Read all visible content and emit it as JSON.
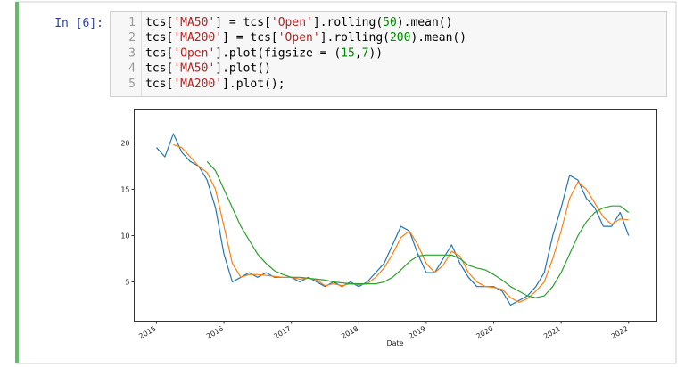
{
  "cell": {
    "prompt": "In [6]:",
    "line_numbers": [
      1,
      2,
      3,
      4,
      5
    ],
    "code": [
      [
        "tcs[",
        "'MA50'",
        "] = tcs[",
        "'Open'",
        "].rolling(",
        "50",
        ").mean()"
      ],
      [
        "tcs[",
        "'MA200'",
        "] = tcs[",
        "'Open'",
        "].rolling(",
        "200",
        ").mean()"
      ],
      [
        "tcs[",
        "'Open'",
        "].plot(figsize = (",
        "15",
        ",",
        "7",
        "))"
      ],
      [
        "tcs[",
        "'MA50'",
        "].plot()"
      ],
      [
        "tcs[",
        "'MA200'",
        "].plot();"
      ]
    ]
  },
  "chart_data": {
    "type": "line",
    "x_label": "Date",
    "x": [
      2015.0,
      2015.125,
      2015.25,
      2015.375,
      2015.5,
      2015.625,
      2015.75,
      2015.875,
      2016.0,
      2016.125,
      2016.25,
      2016.375,
      2016.5,
      2016.625,
      2016.75,
      2016.875,
      2017.0,
      2017.125,
      2017.25,
      2017.375,
      2017.5,
      2017.625,
      2017.75,
      2017.875,
      2018.0,
      2018.125,
      2018.25,
      2018.375,
      2018.5,
      2018.625,
      2018.75,
      2018.875,
      2019.0,
      2019.125,
      2019.25,
      2019.375,
      2019.5,
      2019.625,
      2019.75,
      2019.875,
      2020.0,
      2020.125,
      2020.25,
      2020.375,
      2020.5,
      2020.625,
      2020.75,
      2020.875,
      2021.0,
      2021.125,
      2021.25,
      2021.375,
      2021.5,
      2021.625,
      2021.75,
      2021.875,
      2022.0
    ],
    "series": [
      {
        "color": "#1f77b4",
        "values": [
          19.5,
          18.5,
          21,
          19,
          18,
          17.5,
          16,
          13,
          8,
          5,
          5.5,
          6,
          5.5,
          6,
          5.5,
          5.5,
          5.5,
          5,
          5.5,
          5,
          4.5,
          5,
          4.5,
          5,
          4.5,
          5,
          6,
          7,
          9,
          11,
          10.5,
          8,
          6,
          6,
          7.5,
          9,
          7,
          5.5,
          4.5,
          4.5,
          4.5,
          4,
          2.5,
          3,
          3.5,
          4.5,
          6,
          10,
          13,
          16.5,
          16,
          14,
          13,
          11,
          11,
          12.5,
          10
        ]
      },
      {
        "color": "#ff7f0e",
        "values": [
          null,
          null,
          19.8,
          19.5,
          18.5,
          17.5,
          16.8,
          15,
          11,
          7,
          5.5,
          5.8,
          5.8,
          5.7,
          5.6,
          5.5,
          5.5,
          5.3,
          5.4,
          5.2,
          4.6,
          4.8,
          4.6,
          4.8,
          4.7,
          4.8,
          5.5,
          6.5,
          8,
          9.8,
          10.5,
          9,
          7,
          6,
          6.8,
          8.3,
          7.8,
          6,
          5,
          4.5,
          4.4,
          4.2,
          3.3,
          2.8,
          3.2,
          4,
          5,
          7.5,
          10.5,
          14,
          15.8,
          15,
          13.5,
          12,
          11.2,
          11.8,
          11.7
        ]
      },
      {
        "color": "#2ca02c",
        "values": [
          null,
          null,
          null,
          null,
          null,
          null,
          18,
          17,
          15,
          13,
          11,
          9.5,
          8,
          7,
          6.2,
          5.8,
          5.5,
          5.5,
          5.4,
          5.3,
          5.2,
          5.0,
          4.9,
          4.8,
          4.8,
          4.8,
          4.8,
          5.0,
          5.5,
          6.3,
          7.2,
          7.8,
          7.9,
          7.9,
          7.9,
          7.9,
          7.5,
          6.8,
          6.5,
          6.3,
          5.8,
          5.2,
          4.5,
          4,
          3.5,
          3.3,
          3.5,
          4.5,
          6,
          8,
          10,
          11.5,
          12.5,
          13,
          13.2,
          13.2,
          12.5
        ]
      }
    ],
    "xlim": [
      2014.67,
      2022.42
    ],
    "xticks": [
      2015,
      2016,
      2017,
      2018,
      2019,
      2020,
      2021,
      2022
    ],
    "ylim": [
      0.77,
      23.65
    ],
    "yticks": [
      5,
      10,
      15,
      20
    ]
  }
}
